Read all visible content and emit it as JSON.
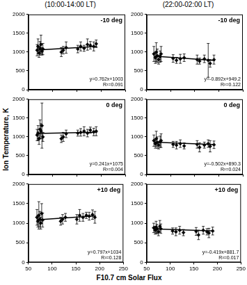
{
  "y_label": "Ion Temperature, K",
  "x_label": "F10.7 cm Solar Flux",
  "chart_data": [
    {
      "type": "scatter",
      "title": "(10:00-14:00 LT)",
      "annotation": "-10 deg",
      "equation": "y=0.762x+1003",
      "r2_label": "R²=0.091",
      "fit": {
        "slope": 0.762,
        "intercept": 1003,
        "x": [
          68,
          192
        ]
      },
      "x": [
        68,
        70,
        72,
        74,
        76,
        78,
        80,
        118,
        122,
        128,
        152,
        158,
        165,
        172,
        178,
        185,
        190
      ],
      "values": [
        1050,
        1150,
        980,
        1100,
        1200,
        1020,
        1080,
        1000,
        1050,
        1120,
        1080,
        1150,
        1100,
        1200,
        1180,
        1150,
        1220
      ],
      "error": [
        150,
        200,
        120,
        180,
        250,
        100,
        150,
        120,
        100,
        150,
        100,
        120,
        80,
        150,
        100,
        120,
        100
      ],
      "xlim": [
        50,
        250
      ],
      "xticks": [
        50,
        100,
        150,
        200,
        250
      ],
      "ylim": [
        0,
        2000
      ],
      "yticks": [
        0,
        500,
        1000,
        1500,
        2000
      ],
      "grid": false,
      "color": "#000000",
      "marker": "diamond",
      "tick_labels": "y"
    },
    {
      "type": "scatter",
      "title": "(22:00-02:00 LT)",
      "annotation": "-10 deg",
      "equation": "y=-0.892x+949.2",
      "r2_label": "R²=0.122",
      "fit": {
        "slope": -0.892,
        "intercept": 949.2,
        "x": [
          65,
          192
        ]
      },
      "x": [
        65,
        68,
        70,
        72,
        75,
        78,
        80,
        105,
        112,
        120,
        128,
        155,
        160,
        170,
        178,
        182,
        190
      ],
      "values": [
        950,
        850,
        1000,
        900,
        800,
        880,
        950,
        830,
        780,
        820,
        850,
        800,
        760,
        820,
        780,
        700,
        800
      ],
      "error": [
        200,
        150,
        250,
        180,
        120,
        150,
        200,
        100,
        80,
        120,
        100,
        120,
        80,
        100,
        450,
        100,
        120
      ],
      "xlim": [
        50,
        250
      ],
      "xticks": [
        50,
        100,
        150,
        200,
        250
      ],
      "ylim": [
        0,
        2000
      ],
      "yticks": [
        0,
        500,
        1000,
        1500,
        2000
      ],
      "grid": false,
      "color": "#000000",
      "marker": "diamond",
      "tick_labels": "y"
    },
    {
      "type": "scatter",
      "annotation": "0 deg",
      "equation": "y=0.241x+1075",
      "r2_label": "R²=0.004",
      "fit": {
        "slope": 0.241,
        "intercept": 1075,
        "x": [
          68,
          192
        ]
      },
      "x": [
        68,
        70,
        72,
        74,
        76,
        78,
        80,
        118,
        122,
        128,
        152,
        158,
        165,
        172,
        178,
        185,
        190
      ],
      "values": [
        1050,
        1100,
        950,
        1200,
        1150,
        1300,
        1000,
        950,
        1000,
        1080,
        1100,
        1120,
        1150,
        1100,
        1180,
        1130,
        1150
      ],
      "error": [
        150,
        200,
        150,
        250,
        200,
        600,
        120,
        100,
        120,
        100,
        80,
        100,
        120,
        100,
        80,
        100,
        120
      ],
      "xlim": [
        50,
        250
      ],
      "xticks": [
        50,
        100,
        150,
        200,
        250
      ],
      "ylim": [
        0,
        2000
      ],
      "yticks": [
        0,
        500,
        1000,
        1500,
        2000
      ],
      "grid": false,
      "color": "#000000",
      "marker": "diamond",
      "tick_labels": "y"
    },
    {
      "type": "scatter",
      "annotation": "0 deg",
      "equation": "y=-0.502x+890.3",
      "r2_label": "R²=0.024",
      "fit": {
        "slope": -0.502,
        "intercept": 890.3,
        "x": [
          65,
          192
        ]
      },
      "x": [
        65,
        68,
        70,
        72,
        75,
        78,
        80,
        105,
        112,
        120,
        128,
        155,
        160,
        170,
        178,
        182,
        190
      ],
      "values": [
        900,
        820,
        950,
        850,
        780,
        870,
        900,
        800,
        780,
        820,
        760,
        800,
        720,
        780,
        820,
        750,
        790
      ],
      "error": [
        150,
        120,
        200,
        150,
        100,
        150,
        180,
        80,
        100,
        100,
        80,
        100,
        120,
        80,
        100,
        150,
        100
      ],
      "xlim": [
        50,
        250
      ],
      "xticks": [
        50,
        100,
        150,
        200,
        250
      ],
      "ylim": [
        0,
        2000
      ],
      "yticks": [
        0,
        500,
        1000,
        1500,
        2000
      ],
      "grid": false,
      "color": "#000000",
      "marker": "diamond",
      "tick_labels": "y"
    },
    {
      "type": "scatter",
      "annotation": "+10 deg",
      "equation": "y=0.797x+1034",
      "r2_label": "R²=0.128",
      "fit": {
        "slope": 0.797,
        "intercept": 1034,
        "x": [
          68,
          192
        ]
      },
      "x": [
        68,
        70,
        72,
        74,
        76,
        78,
        80,
        118,
        122,
        128,
        152,
        158,
        165,
        172,
        178,
        185,
        190
      ],
      "values": [
        1150,
        1050,
        1200,
        1100,
        1000,
        1250,
        1080,
        1050,
        1100,
        1150,
        1100,
        1200,
        1150,
        1200,
        1180,
        1220,
        1150
      ],
      "error": [
        200,
        150,
        350,
        200,
        150,
        250,
        180,
        100,
        120,
        100,
        120,
        150,
        100,
        80,
        100,
        120,
        150
      ],
      "xlim": [
        50,
        250
      ],
      "xticks": [
        50,
        100,
        150,
        200,
        250
      ],
      "ylim": [
        0,
        2000
      ],
      "yticks": [
        0,
        500,
        1000,
        1500,
        2000
      ],
      "grid": false,
      "color": "#000000",
      "marker": "diamond"
    },
    {
      "type": "scatter",
      "annotation": "+10 deg",
      "equation": "y=-0.419x+881.7",
      "r2_label": "R²=0.017",
      "fit": {
        "slope": -0.419,
        "intercept": 881.7,
        "x": [
          65,
          192
        ]
      },
      "x": [
        65,
        68,
        70,
        72,
        75,
        78,
        80,
        105,
        112,
        120,
        128,
        155,
        160,
        170,
        178,
        182,
        190
      ],
      "values": [
        880,
        820,
        900,
        850,
        780,
        920,
        860,
        800,
        780,
        820,
        760,
        790,
        700,
        820,
        780,
        750,
        800
      ],
      "error": [
        120,
        100,
        150,
        120,
        100,
        150,
        120,
        80,
        100,
        100,
        80,
        100,
        120,
        100,
        80,
        120,
        100
      ],
      "xlim": [
        50,
        250
      ],
      "xticks": [
        50,
        100,
        150,
        200,
        250
      ],
      "ylim": [
        0,
        2000
      ],
      "yticks": [
        0,
        500,
        1000,
        1500,
        2000
      ],
      "grid": false,
      "color": "#000000",
      "marker": "diamond"
    }
  ]
}
